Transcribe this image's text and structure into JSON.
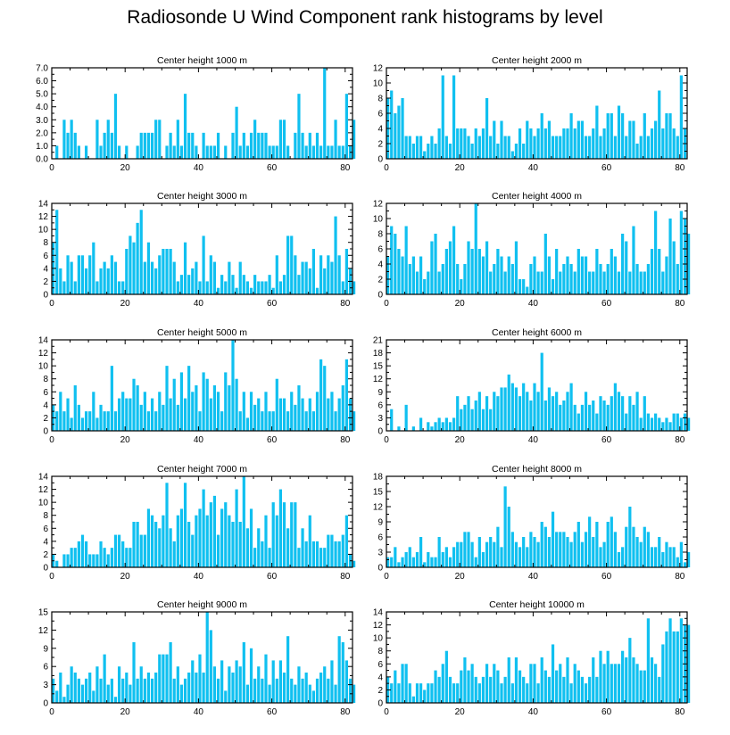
{
  "title": "Radiosonde U Wind Component rank histograms by level",
  "bar_color": "#10c0f0",
  "chart_data": [
    {
      "type": "bar",
      "title": "Center height 1000 m",
      "ylim": [
        0,
        7
      ],
      "yticks": [
        0.0,
        1.0,
        2.0,
        3.0,
        4.0,
        5.0,
        6.0,
        7.0
      ],
      "ytick_labels": [
        "0.0",
        "1.0",
        "2.0",
        "3.0",
        "4.0",
        "5.0",
        "6.0",
        "7.0"
      ],
      "xlim": [
        0,
        82
      ],
      "xticks": [
        0,
        20,
        40,
        60,
        80
      ],
      "xtick_labels": [
        "0",
        "20",
        "40",
        "60",
        "80"
      ],
      "values": [
        0,
        1,
        0,
        3,
        2,
        3,
        2,
        1,
        0,
        1,
        0,
        0,
        3,
        1,
        2,
        3,
        2,
        5,
        1,
        0,
        1,
        0,
        0,
        1,
        2,
        2,
        2,
        2,
        3,
        3,
        0,
        1,
        2,
        1,
        3,
        1,
        5,
        2,
        2,
        1,
        0,
        2,
        1,
        1,
        1,
        2,
        0,
        1,
        0,
        2,
        4,
        1,
        2,
        1,
        2,
        3,
        2,
        2,
        2,
        1,
        1,
        1,
        3,
        3,
        1,
        0,
        2,
        5,
        2,
        1,
        2,
        1,
        2,
        1,
        7,
        1,
        1,
        3,
        1,
        1,
        5,
        1,
        3
      ]
    },
    {
      "type": "bar",
      "title": "Center height 2000 m",
      "ylim": [
        0,
        12
      ],
      "yticks": [
        0,
        2,
        4,
        6,
        8,
        10,
        12
      ],
      "ytick_labels": [
        "0",
        "2",
        "4",
        "6",
        "8",
        "10",
        "12"
      ],
      "xlim": [
        0,
        82
      ],
      "xticks": [
        0,
        20,
        40,
        60,
        80
      ],
      "xtick_labels": [
        "0",
        "20",
        "40",
        "60",
        "80"
      ],
      "values": [
        8,
        9,
        6,
        7,
        8,
        3,
        3,
        2,
        3,
        3,
        1,
        2,
        3,
        2,
        4,
        11,
        3,
        2,
        11,
        4,
        4,
        4,
        3,
        2,
        4,
        3,
        4,
        8,
        3,
        5,
        2,
        5,
        3,
        3,
        1,
        2,
        4,
        2,
        5,
        4,
        3,
        4,
        6,
        4,
        5,
        3,
        3,
        3,
        4,
        4,
        6,
        4,
        5,
        5,
        3,
        3,
        4,
        7,
        3,
        4,
        6,
        6,
        3,
        7,
        6,
        3,
        5,
        5,
        2,
        3,
        6,
        3,
        4,
        5,
        9,
        4,
        6,
        6,
        4,
        3,
        11,
        4
      ]
    },
    {
      "type": "bar",
      "title": "Center height 3000 m",
      "ylim": [
        0,
        14
      ],
      "yticks": [
        0,
        2,
        4,
        6,
        8,
        10,
        12,
        14
      ],
      "ytick_labels": [
        "0",
        "2",
        "4",
        "6",
        "8",
        "10",
        "12",
        "14"
      ],
      "xlim": [
        0,
        82
      ],
      "xticks": [
        0,
        20,
        40,
        60,
        80
      ],
      "xtick_labels": [
        "0",
        "20",
        "40",
        "60",
        "80"
      ],
      "values": [
        8,
        13,
        4,
        2,
        6,
        5,
        2,
        6,
        6,
        4,
        6,
        8,
        2,
        4,
        5,
        4,
        6,
        5,
        2,
        2,
        7,
        9,
        8,
        11,
        13,
        5,
        8,
        5,
        4,
        6,
        7,
        7,
        7,
        5,
        2,
        3,
        8,
        3,
        4,
        5,
        2,
        9,
        2,
        6,
        5,
        1,
        3,
        2,
        5,
        3,
        1,
        5,
        3,
        2,
        1,
        3,
        2,
        2,
        2,
        3,
        1,
        6,
        2,
        3,
        9,
        9,
        6,
        3,
        5,
        5,
        4,
        7,
        1,
        6,
        4,
        6,
        5,
        12,
        6,
        2,
        7,
        4,
        2
      ]
    },
    {
      "type": "bar",
      "title": "Center height 4000 m",
      "ylim": [
        0,
        12
      ],
      "yticks": [
        0,
        2,
        4,
        6,
        8,
        10,
        12
      ],
      "ytick_labels": [
        "0",
        "2",
        "4",
        "6",
        "8",
        "10",
        "12"
      ],
      "xlim": [
        0,
        82
      ],
      "xticks": [
        0,
        20,
        40,
        60,
        80
      ],
      "xtick_labels": [
        "0",
        "20",
        "40",
        "60",
        "80"
      ],
      "values": [
        5,
        9,
        8,
        6,
        5,
        9,
        4,
        5,
        3,
        5,
        2,
        3,
        7,
        8,
        3,
        4,
        6,
        7,
        9,
        4,
        2,
        4,
        7,
        6,
        12,
        6,
        5,
        7,
        3,
        4,
        6,
        5,
        3,
        5,
        4,
        7,
        2,
        2,
        1,
        4,
        5,
        3,
        3,
        8,
        5,
        2,
        6,
        3,
        4,
        5,
        4,
        3,
        6,
        5,
        5,
        3,
        3,
        6,
        4,
        3,
        4,
        6,
        5,
        3,
        8,
        7,
        3,
        9,
        4,
        3,
        3,
        4,
        6,
        11,
        6,
        3,
        5,
        10,
        7,
        4,
        11,
        10,
        8
      ]
    },
    {
      "type": "bar",
      "title": "Center height 5000 m",
      "ylim": [
        0,
        14
      ],
      "yticks": [
        0,
        2,
        4,
        6,
        8,
        10,
        12,
        14
      ],
      "ytick_labels": [
        "0",
        "2",
        "4",
        "6",
        "8",
        "10",
        "12",
        "14"
      ],
      "xlim": [
        0,
        82
      ],
      "xticks": [
        0,
        20,
        40,
        60,
        80
      ],
      "xtick_labels": [
        "0",
        "20",
        "40",
        "60",
        "80"
      ],
      "values": [
        4,
        3,
        6,
        3,
        5,
        2,
        7,
        4,
        2,
        3,
        3,
        6,
        2,
        4,
        3,
        3,
        10,
        3,
        5,
        6,
        5,
        5,
        8,
        7,
        4,
        6,
        3,
        5,
        3,
        6,
        4,
        10,
        5,
        8,
        4,
        9,
        5,
        10,
        6,
        7,
        3,
        9,
        8,
        5,
        7,
        6,
        3,
        9,
        7,
        14,
        8,
        3,
        6,
        2,
        6,
        4,
        5,
        3,
        6,
        3,
        3,
        8,
        5,
        5,
        3,
        6,
        4,
        7,
        5,
        3,
        5,
        3,
        6,
        11,
        10,
        5,
        6,
        3,
        5,
        7,
        11,
        5,
        3
      ]
    },
    {
      "type": "bar",
      "title": "Center height 6000 m",
      "ylim": [
        0,
        21
      ],
      "yticks": [
        0,
        3,
        6,
        9,
        12,
        15,
        18,
        21
      ],
      "ytick_labels": [
        "0",
        "3",
        "6",
        "9",
        "12",
        "15",
        "18",
        "21"
      ],
      "xlim": [
        0,
        82
      ],
      "xticks": [
        0,
        20,
        40,
        60,
        80
      ],
      "xtick_labels": [
        "0",
        "20",
        "40",
        "60",
        "80"
      ],
      "values": [
        0,
        5,
        0,
        1,
        0,
        6,
        0,
        1,
        0,
        3,
        0,
        2,
        1,
        2,
        3,
        2,
        3,
        2,
        3,
        8,
        5,
        6,
        8,
        5,
        7,
        9,
        5,
        8,
        5,
        9,
        8,
        10,
        10,
        13,
        11,
        10,
        8,
        11,
        9,
        7,
        11,
        9,
        18,
        7,
        10,
        8,
        9,
        6,
        7,
        9,
        11,
        6,
        4,
        6,
        9,
        6,
        7,
        4,
        8,
        7,
        6,
        8,
        11,
        9,
        8,
        4,
        8,
        6,
        9,
        3,
        8,
        4,
        3,
        4,
        3,
        2,
        3,
        2,
        4,
        4,
        3,
        4,
        3
      ]
    },
    {
      "type": "bar",
      "title": "Center height 7000 m",
      "ylim": [
        0,
        14
      ],
      "yticks": [
        0,
        2,
        4,
        6,
        8,
        10,
        12,
        14
      ],
      "ytick_labels": [
        "0",
        "2",
        "4",
        "6",
        "8",
        "10",
        "12",
        "14"
      ],
      "xlim": [
        0,
        82
      ],
      "xticks": [
        0,
        20,
        40,
        60,
        80
      ],
      "xtick_labels": [
        "0",
        "20",
        "40",
        "60",
        "80"
      ],
      "values": [
        2,
        1,
        0,
        2,
        2,
        3,
        3,
        4,
        5,
        4,
        2,
        2,
        2,
        4,
        3,
        2,
        3,
        5,
        5,
        4,
        3,
        3,
        7,
        7,
        5,
        5,
        9,
        8,
        7,
        6,
        8,
        13,
        6,
        4,
        8,
        9,
        13,
        7,
        5,
        8,
        9,
        12,
        8,
        10,
        11,
        5,
        9,
        10,
        8,
        7,
        12,
        7,
        14,
        6,
        9,
        3,
        6,
        4,
        8,
        3,
        10,
        8,
        12,
        10,
        6,
        10,
        10,
        3,
        6,
        4,
        8,
        4,
        4,
        3,
        3,
        5,
        5,
        4,
        4,
        5,
        8,
        2,
        1
      ]
    },
    {
      "type": "bar",
      "title": "Center height 8000 m",
      "ylim": [
        0,
        18
      ],
      "yticks": [
        0,
        3,
        6,
        9,
        12,
        15,
        18
      ],
      "ytick_labels": [
        "0",
        "3",
        "6",
        "9",
        "12",
        "15",
        "18"
      ],
      "xlim": [
        0,
        82
      ],
      "xticks": [
        0,
        20,
        40,
        60,
        80
      ],
      "xtick_labels": [
        "0",
        "20",
        "40",
        "60",
        "80"
      ],
      "values": [
        2,
        2,
        4,
        1,
        2,
        3,
        4,
        2,
        3,
        6,
        1,
        3,
        2,
        2,
        6,
        3,
        4,
        2,
        4,
        5,
        5,
        7,
        7,
        5,
        2,
        6,
        3,
        5,
        6,
        5,
        8,
        4,
        16,
        12,
        7,
        5,
        4,
        6,
        4,
        7,
        6,
        5,
        9,
        8,
        6,
        11,
        7,
        7,
        7,
        6,
        5,
        7,
        9,
        5,
        7,
        10,
        6,
        9,
        4,
        5,
        9,
        10,
        7,
        3,
        4,
        8,
        12,
        8,
        6,
        5,
        8,
        7,
        4,
        4,
        6,
        3,
        5,
        4,
        4,
        2,
        5,
        1,
        3
      ]
    },
    {
      "type": "bar",
      "title": "Center height 9000 m",
      "ylim": [
        0,
        15
      ],
      "yticks": [
        0,
        3,
        6,
        9,
        12,
        15
      ],
      "ytick_labels": [
        "0",
        "3",
        "6",
        "9",
        "12",
        "15"
      ],
      "xlim": [
        0,
        82
      ],
      "xticks": [
        0,
        20,
        40,
        60,
        80
      ],
      "xtick_labels": [
        "0",
        "20",
        "40",
        "60",
        "80"
      ],
      "values": [
        4,
        2,
        5,
        1,
        3,
        6,
        5,
        4,
        3,
        4,
        5,
        2,
        6,
        4,
        8,
        3,
        4,
        1,
        6,
        4,
        5,
        3,
        10,
        4,
        6,
        4,
        5,
        4,
        5,
        8,
        8,
        8,
        10,
        4,
        6,
        3,
        4,
        5,
        7,
        5,
        8,
        5,
        15,
        12,
        6,
        4,
        7,
        2,
        6,
        5,
        7,
        6,
        10,
        3,
        9,
        4,
        6,
        4,
        8,
        3,
        7,
        4,
        7,
        5,
        11,
        4,
        3,
        6,
        4,
        5,
        3,
        2,
        4,
        5,
        6,
        4,
        7,
        3,
        11,
        10,
        7,
        4,
        3
      ]
    },
    {
      "type": "bar",
      "title": "Center height 10000 m",
      "ylim": [
        0,
        14
      ],
      "yticks": [
        0,
        2,
        4,
        6,
        8,
        10,
        12,
        14
      ],
      "ytick_labels": [
        "0",
        "2",
        "4",
        "6",
        "8",
        "10",
        "12",
        "14"
      ],
      "xlim": [
        0,
        82
      ],
      "xticks": [
        0,
        20,
        40,
        60,
        80
      ],
      "xtick_labels": [
        "0",
        "20",
        "40",
        "60",
        "80"
      ],
      "values": [
        4,
        3,
        5,
        3,
        6,
        6,
        3,
        1,
        3,
        3,
        2,
        3,
        3,
        5,
        4,
        6,
        8,
        4,
        3,
        3,
        5,
        7,
        5,
        6,
        4,
        3,
        4,
        6,
        4,
        6,
        5,
        3,
        4,
        7,
        3,
        7,
        5,
        4,
        3,
        6,
        6,
        3,
        7,
        5,
        4,
        9,
        5,
        6,
        4,
        7,
        3,
        6,
        5,
        4,
        3,
        4,
        7,
        4,
        8,
        6,
        8,
        6,
        6,
        6,
        8,
        7,
        10,
        7,
        6,
        5,
        5,
        13,
        7,
        6,
        4,
        9,
        11,
        13,
        11,
        11,
        13,
        12,
        12
      ]
    }
  ]
}
